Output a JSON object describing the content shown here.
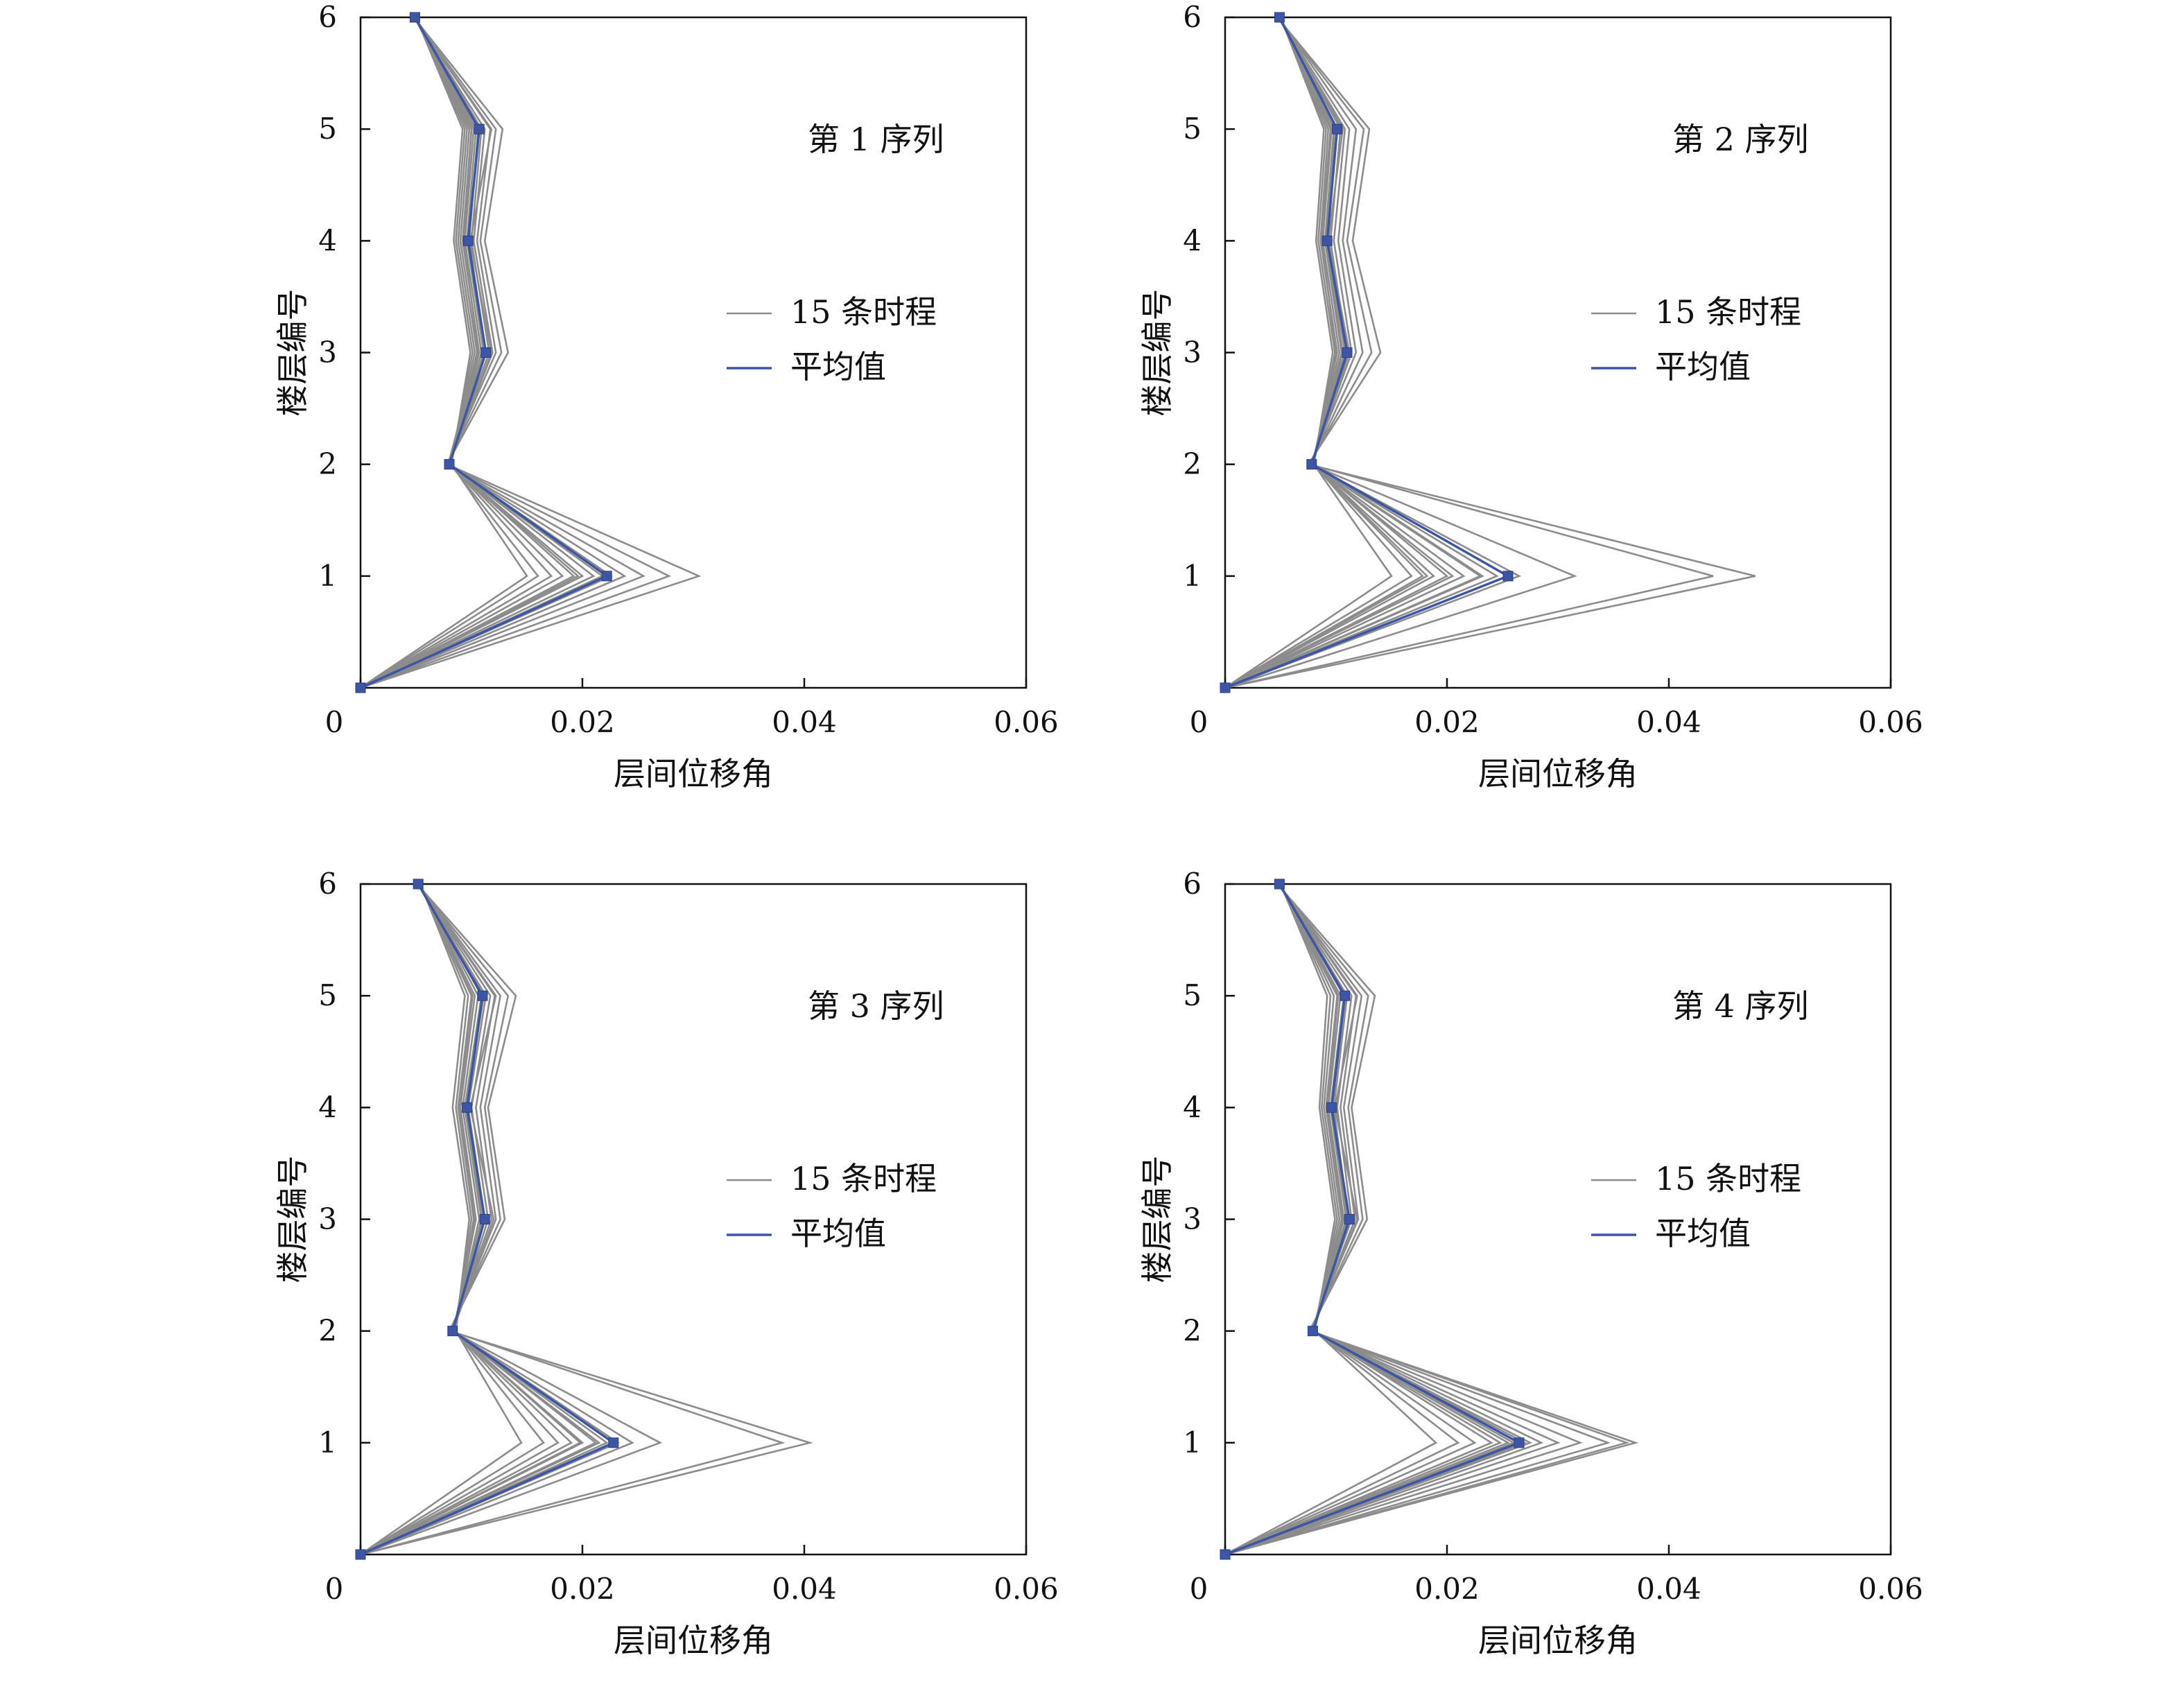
{
  "chart_data": [
    {
      "type": "line",
      "panel_label": "第 1 序列",
      "xlabel": "层间位移角",
      "ylabel": "楼层编号",
      "xlim": [
        0,
        0.06
      ],
      "ylim": [
        0,
        6
      ],
      "xticks": [
        "0",
        "0.02",
        "0.04",
        "0.06"
      ],
      "yticks": [
        "1",
        "2",
        "3",
        "4",
        "5",
        "6"
      ],
      "legend": [
        "15 条时程",
        "平均值"
      ],
      "legend_position": "right-middle",
      "grid": false,
      "floors": [
        0,
        1,
        2,
        3,
        4,
        5,
        6
      ],
      "series": [
        {
          "name": "15 条时程",
          "group": "records",
          "color": "#8c8c8c",
          "runs": [
            [
              0,
              0.0305,
              0.0078,
              0.0133,
              0.0112,
              0.0128,
              0.0048
            ],
            [
              0,
              0.0278,
              0.0078,
              0.0127,
              0.0108,
              0.0122,
              0.0048
            ],
            [
              0,
              0.0255,
              0.0078,
              0.0122,
              0.0105,
              0.0117,
              0.0048
            ],
            [
              0,
              0.0238,
              0.0079,
              0.0119,
              0.0102,
              0.0112,
              0.0048
            ],
            [
              0,
              0.0226,
              0.0079,
              0.0116,
              0.01,
              0.0109,
              0.0049
            ],
            [
              0,
              0.0218,
              0.0079,
              0.0113,
              0.0098,
              0.0106,
              0.0049
            ],
            [
              0,
              0.021,
              0.008,
              0.0111,
              0.0096,
              0.0104,
              0.0049
            ],
            [
              0,
              0.02,
              0.008,
              0.0109,
              0.0094,
              0.0102,
              0.0049
            ],
            [
              0,
              0.0192,
              0.008,
              0.0107,
              0.0092,
              0.01,
              0.0049
            ],
            [
              0,
              0.0182,
              0.0081,
              0.0105,
              0.009,
              0.0098,
              0.0049
            ],
            [
              0,
              0.0172,
              0.0081,
              0.0103,
              0.0088,
              0.0096,
              0.005
            ],
            [
              0,
              0.016,
              0.0081,
              0.0101,
              0.0086,
              0.0094,
              0.005
            ],
            [
              0,
              0.015,
              0.0082,
              0.0099,
              0.0084,
              0.0092,
              0.005
            ],
            [
              0,
              0.0196,
              0.008,
              0.0118,
              0.0099,
              0.0118,
              0.0048
            ],
            [
              0,
              0.0225,
              0.0079,
              0.0106,
              0.0093,
              0.01,
              0.005
            ]
          ]
        },
        {
          "name": "平均值",
          "group": "mean",
          "color": "#3c55a5",
          "values": [
            0,
            0.0222,
            0.008,
            0.0113,
            0.0097,
            0.0107,
            0.0049
          ]
        }
      ]
    },
    {
      "type": "line",
      "panel_label": "第 2 序列",
      "xlabel": "层间位移角",
      "ylabel": "楼层编号",
      "xlim": [
        0,
        0.06
      ],
      "ylim": [
        0,
        6
      ],
      "xticks": [
        "0",
        "0.02",
        "0.04",
        "0.06"
      ],
      "yticks": [
        "1",
        "2",
        "3",
        "4",
        "5",
        "6"
      ],
      "legend": [
        "15 条时程",
        "平均值"
      ],
      "legend_position": "right-middle",
      "grid": false,
      "floors": [
        0,
        1,
        2,
        3,
        4,
        5,
        6
      ],
      "series": [
        {
          "name": "15 条时程",
          "group": "records",
          "color": "#8c8c8c",
          "runs": [
            [
              0,
              0.0478,
              0.0075,
              0.014,
              0.0115,
              0.013,
              0.0047
            ],
            [
              0,
              0.044,
              0.0076,
              0.0132,
              0.011,
              0.0125,
              0.0047
            ],
            [
              0,
              0.0315,
              0.0077,
              0.0124,
              0.0106,
              0.0118,
              0.0048
            ],
            [
              0,
              0.0265,
              0.0077,
              0.0118,
              0.0102,
              0.0112,
              0.0048
            ],
            [
              0,
              0.0245,
              0.0078,
              0.0114,
              0.0098,
              0.0108,
              0.0048
            ],
            [
              0,
              0.023,
              0.0078,
              0.011,
              0.0095,
              0.0104,
              0.0049
            ],
            [
              0,
              0.0215,
              0.0078,
              0.0108,
              0.0092,
              0.0101,
              0.0049
            ],
            [
              0,
              0.02,
              0.0079,
              0.0105,
              0.009,
              0.0098,
              0.0049
            ],
            [
              0,
              0.0188,
              0.0079,
              0.0103,
              0.0088,
              0.0096,
              0.0049
            ],
            [
              0,
              0.0178,
              0.0079,
              0.0101,
              0.0086,
              0.0093,
              0.005
            ],
            [
              0,
              0.0168,
              0.008,
              0.0099,
              0.0084,
              0.0091,
              0.005
            ],
            [
              0,
              0.015,
              0.008,
              0.0097,
              0.0082,
              0.0089,
              0.005
            ],
            [
              0,
              0.0205,
              0.0078,
              0.0112,
              0.0093,
              0.0106,
              0.0048
            ],
            [
              0,
              0.0232,
              0.0079,
              0.01,
              0.0087,
              0.0095,
              0.005
            ],
            [
              0,
              0.0182,
              0.0079,
              0.0106,
              0.0091,
              0.0099,
              0.0049
            ]
          ]
        },
        {
          "name": "平均值",
          "group": "mean",
          "color": "#3c55a5",
          "values": [
            0,
            0.0255,
            0.0078,
            0.011,
            0.0092,
            0.0101,
            0.0049
          ]
        }
      ]
    },
    {
      "type": "line",
      "panel_label": "第 3 序列",
      "xlabel": "层间位移角",
      "ylabel": "楼层编号",
      "xlim": [
        0,
        0.06
      ],
      "ylim": [
        0,
        6
      ],
      "xticks": [
        "0",
        "0.02",
        "0.04",
        "0.06"
      ],
      "yticks": [
        "1",
        "2",
        "3",
        "4",
        "5",
        "6"
      ],
      "legend": [
        "15 条时程",
        "平均值"
      ],
      "legend_position": "right-middle",
      "grid": false,
      "floors": [
        0,
        1,
        2,
        3,
        4,
        5,
        6
      ],
      "series": [
        {
          "name": "15 条时程",
          "group": "records",
          "color": "#8c8c8c",
          "runs": [
            [
              0,
              0.0405,
              0.008,
              0.013,
              0.0115,
              0.014,
              0.0051
            ],
            [
              0,
              0.038,
              0.0081,
              0.0126,
              0.0112,
              0.0133,
              0.0051
            ],
            [
              0,
              0.027,
              0.0082,
              0.0122,
              0.0108,
              0.0126,
              0.0052
            ],
            [
              0,
              0.0245,
              0.0082,
              0.0118,
              0.0104,
              0.0121,
              0.0052
            ],
            [
              0,
              0.0232,
              0.0083,
              0.0115,
              0.01,
              0.0117,
              0.0052
            ],
            [
              0,
              0.0222,
              0.0083,
              0.0112,
              0.0097,
              0.0113,
              0.0052
            ],
            [
              0,
              0.0212,
              0.0084,
              0.0109,
              0.0094,
              0.0109,
              0.0053
            ],
            [
              0,
              0.02,
              0.0084,
              0.0107,
              0.0092,
              0.0106,
              0.0053
            ],
            [
              0,
              0.019,
              0.0084,
              0.0104,
              0.009,
              0.0103,
              0.0053
            ],
            [
              0,
              0.0178,
              0.0085,
              0.0102,
              0.0088,
              0.01,
              0.0053
            ],
            [
              0,
              0.0165,
              0.0085,
              0.01,
              0.0086,
              0.0097,
              0.0054
            ],
            [
              0,
              0.0145,
              0.0086,
              0.0098,
              0.0083,
              0.0094,
              0.0054
            ],
            [
              0,
              0.0215,
              0.0083,
              0.012,
              0.0099,
              0.0122,
              0.0052
            ],
            [
              0,
              0.0198,
              0.0084,
              0.0103,
              0.0089,
              0.0101,
              0.0053
            ],
            [
              0,
              0.0228,
              0.0083,
              0.011,
              0.0095,
              0.0111,
              0.0052
            ]
          ]
        },
        {
          "name": "平均值",
          "group": "mean",
          "color": "#3c55a5",
          "values": [
            0,
            0.0228,
            0.0083,
            0.0112,
            0.0096,
            0.011,
            0.0052
          ]
        }
      ]
    },
    {
      "type": "line",
      "panel_label": "第 4 序列",
      "xlabel": "层间位移角",
      "ylabel": "楼层编号",
      "xlim": [
        0,
        0.06
      ],
      "ylim": [
        0,
        6
      ],
      "xticks": [
        "0",
        "0.02",
        "0.04",
        "0.06"
      ],
      "yticks": [
        "1",
        "2",
        "3",
        "4",
        "5",
        "6"
      ],
      "legend": [
        "15 条时程",
        "平均值"
      ],
      "legend_position": "right-middle",
      "grid": false,
      "floors": [
        0,
        1,
        2,
        3,
        4,
        5,
        6
      ],
      "series": [
        {
          "name": "15 条时程",
          "group": "records",
          "color": "#8c8c8c",
          "runs": [
            [
              0,
              0.037,
              0.0076,
              0.0128,
              0.0114,
              0.0135,
              0.0047
            ],
            [
              0,
              0.0362,
              0.0077,
              0.0124,
              0.0111,
              0.0129,
              0.0047
            ],
            [
              0,
              0.0345,
              0.0077,
              0.012,
              0.0107,
              0.0123,
              0.0048
            ],
            [
              0,
              0.032,
              0.0078,
              0.0117,
              0.0104,
              0.0118,
              0.0048
            ],
            [
              0,
              0.03,
              0.0078,
              0.0114,
              0.0101,
              0.0114,
              0.0048
            ],
            [
              0,
              0.0285,
              0.0079,
              0.0111,
              0.0098,
              0.011,
              0.0049
            ],
            [
              0,
              0.027,
              0.0079,
              0.0109,
              0.0095,
              0.0107,
              0.0049
            ],
            [
              0,
              0.0255,
              0.0079,
              0.0107,
              0.0093,
              0.0104,
              0.0049
            ],
            [
              0,
              0.024,
              0.008,
              0.0105,
              0.0091,
              0.0101,
              0.0049
            ],
            [
              0,
              0.0225,
              0.008,
              0.0103,
              0.0089,
              0.0098,
              0.005
            ],
            [
              0,
              0.021,
              0.008,
              0.0101,
              0.0087,
              0.0095,
              0.005
            ],
            [
              0,
              0.019,
              0.0081,
              0.0099,
              0.0085,
              0.0092,
              0.005
            ],
            [
              0,
              0.0275,
              0.0078,
              0.0119,
              0.0099,
              0.0119,
              0.0048
            ],
            [
              0,
              0.026,
              0.0079,
              0.0106,
              0.0092,
              0.0102,
              0.0049
            ],
            [
              0,
              0.0248,
              0.0079,
              0.011,
              0.0096,
              0.0108,
              0.0049
            ]
          ]
        },
        {
          "name": "平均值",
          "group": "mean",
          "color": "#3c55a5",
          "values": [
            0,
            0.0265,
            0.0079,
            0.0112,
            0.0096,
            0.0108,
            0.0049
          ]
        }
      ]
    }
  ],
  "colors": {
    "axis": "#111111",
    "records": "#8c8c8c",
    "mean": "#3c55a5"
  }
}
